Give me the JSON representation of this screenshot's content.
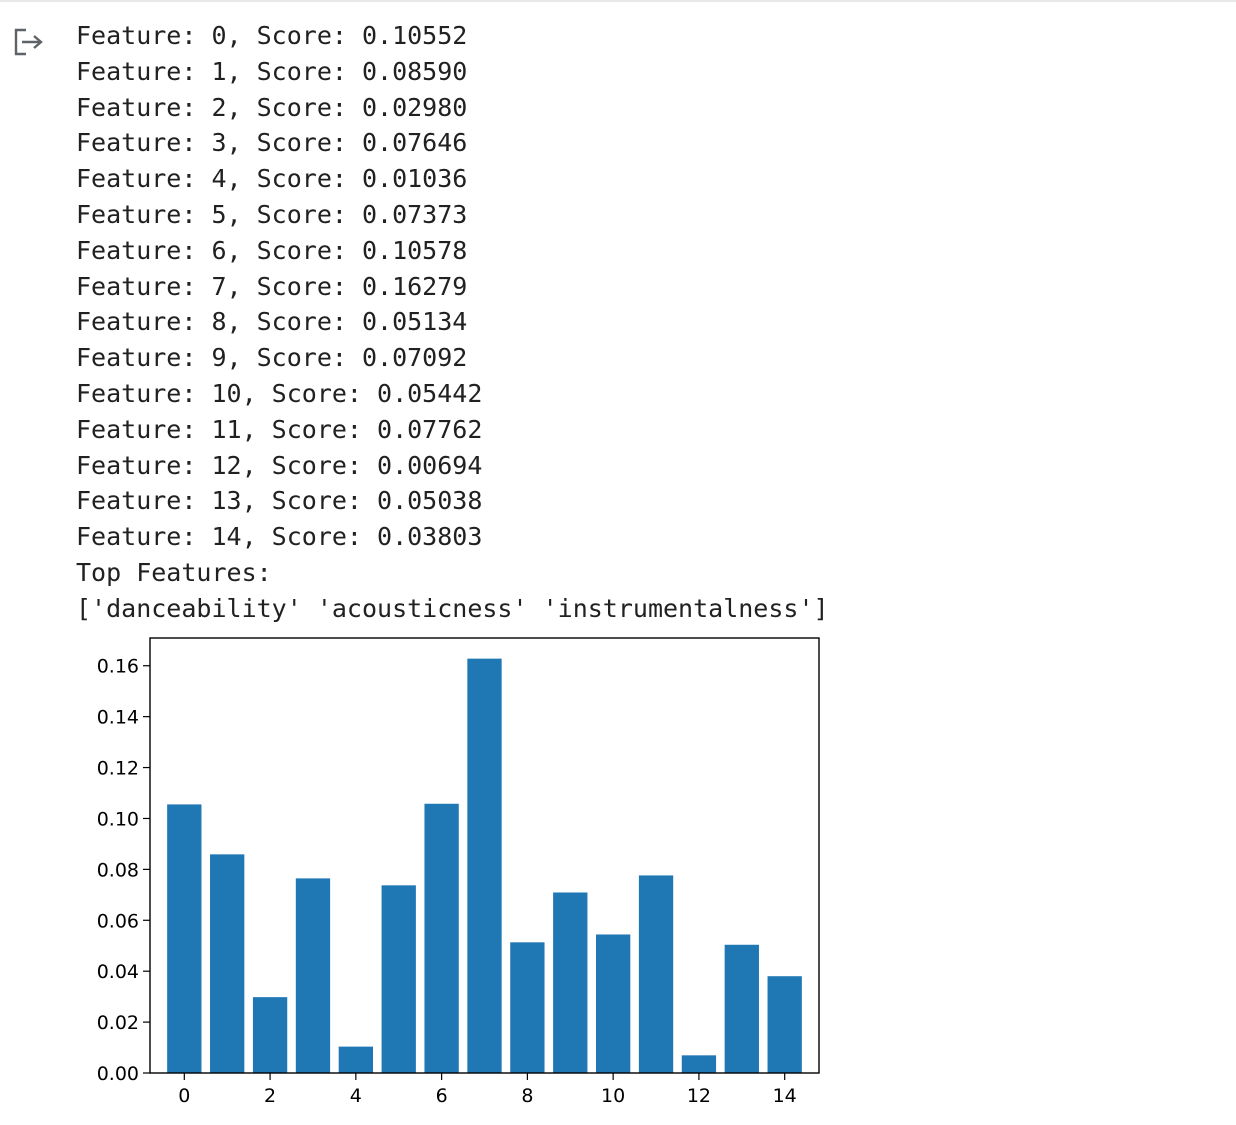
{
  "output": {
    "icon": "output-redirect-icon",
    "lines": [
      "Feature: 0, Score: 0.10552",
      "Feature: 1, Score: 0.08590",
      "Feature: 2, Score: 0.02980",
      "Feature: 3, Score: 0.07646",
      "Feature: 4, Score: 0.01036",
      "Feature: 5, Score: 0.07373",
      "Feature: 6, Score: 0.10578",
      "Feature: 7, Score: 0.16279",
      "Feature: 8, Score: 0.05134",
      "Feature: 9, Score: 0.07092",
      "Feature: 10, Score: 0.05442",
      "Feature: 11, Score: 0.07762",
      "Feature: 12, Score: 0.00694",
      "Feature: 13, Score: 0.05038",
      "Feature: 14, Score: 0.03803",
      "Top Features:",
      "['danceability' 'acousticness' 'instrumentalness']"
    ]
  },
  "chart_data": {
    "type": "bar",
    "categories": [
      0,
      1,
      2,
      3,
      4,
      5,
      6,
      7,
      8,
      9,
      10,
      11,
      12,
      13,
      14
    ],
    "values": [
      0.10552,
      0.0859,
      0.0298,
      0.07646,
      0.01036,
      0.07373,
      0.10578,
      0.16279,
      0.05134,
      0.07092,
      0.05442,
      0.07762,
      0.00694,
      0.05038,
      0.03803
    ],
    "title": "",
    "xlabel": "",
    "ylabel": "",
    "xticks": [
      "0",
      "2",
      "4",
      "6",
      "8",
      "10",
      "12",
      "14"
    ],
    "yticks": [
      "0.00",
      "0.02",
      "0.04",
      "0.06",
      "0.08",
      "0.10",
      "0.12",
      "0.14",
      "0.16"
    ],
    "ylim": [
      0,
      0.1709
    ],
    "grid": false,
    "color": "#1f77b4"
  }
}
